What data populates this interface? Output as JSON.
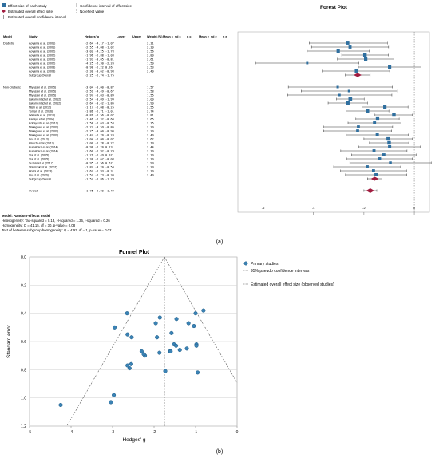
{
  "forest": {
    "title": "Forest Plot",
    "legend": {
      "study_effect": "Effect size of each study",
      "overall_effect": "Estimated overall effect size",
      "overall_ci": "Estimated overall confidence interval",
      "ci": "Confidence interval of effect size",
      "no_effect": "No-effect value"
    },
    "columns": [
      "Model",
      "Study",
      "Hedges' g",
      "Lower",
      "Upper",
      "Weight (%)",
      "Mean c",
      "sd c",
      "n c",
      "Mean e",
      "sd e",
      "n e"
    ],
    "groups": [
      {
        "name": "Diabetic",
        "studies": [
          {
            "label": "Aoyama et al. (2001)",
            "g": -2.64,
            "lo": -4.17,
            "hi": -1.07,
            "w": "2.31"
          },
          {
            "label": "Aoyama et al. (2001)",
            "g": -2.55,
            "lo": -4.08,
            "hi": -1.02,
            "w": "2.30"
          },
          {
            "label": "Aoyama et al. (2002)",
            "g": -3.02,
            "lo": -4.25,
            "hi": -1.78,
            "w": "2.56"
          },
          {
            "label": "Aoyama et al. (2002)",
            "g": -1.96,
            "lo": -2.88,
            "hi": -1.03,
            "w": "2.80"
          },
          {
            "label": "Aoyama et al. (2002)",
            "g": -1.93,
            "lo": -3.05,
            "hi": -0.81,
            "w": "2.61"
          },
          {
            "label": "Aoyama et al. (2002)",
            "g": -4.25,
            "lo": -6.3,
            "hi": -2.2,
            "w": "1.50"
          },
          {
            "label": "Aoyama et al. (2003)",
            "g": -0.98,
            "lo": -2.22,
            "hi": 0.26,
            "w": "2.53"
          },
          {
            "label": "Aoyama et al. (2003)",
            "g": -2.3,
            "lo": -3.62,
            "hi": -0.98,
            "w": "2.40"
          }
        ],
        "subgroup": {
          "label": "Subgroup Overall",
          "g": -2.25,
          "lo": -2.74,
          "hi": -1.75
        }
      },
      {
        "name": "Non-Diabetic",
        "studies": [
          {
            "label": "Miyazaki et al. (2005)",
            "g": -3.04,
            "lo": -5.0,
            "hi": -0.87,
            "w": "1.57"
          },
          {
            "label": "Miyazaki et al. (2005)",
            "g": -2.59,
            "lo": -4.49,
            "hi": -0.67,
            "w": "1.58"
          },
          {
            "label": "Miyazaki et al. (2005)",
            "g": -2.97,
            "lo": -5.03,
            "hi": -0.89,
            "w": "1.55"
          },
          {
            "label": "Lakamentijct et al. (2012)",
            "g": -2.54,
            "lo": -3.09,
            "hi": -1.99,
            "w": "3.00"
          },
          {
            "label": "Lakamentijct et al. (2012)",
            "g": -2.64,
            "lo": -3.42,
            "hi": -1.86,
            "w": "2.90"
          },
          {
            "label": "Nishi et al. (2012)",
            "g": -1.17,
            "lo": -2.08,
            "hi": -0.25,
            "w": "2.55"
          },
          {
            "label": "Tomar et al. (2016)",
            "g": -1.86,
            "lo": -2.71,
            "hi": -1.01,
            "w": "2.74"
          },
          {
            "label": "Wakada et al. (2010)",
            "g": -0.81,
            "lo": -1.56,
            "hi": -0.07,
            "w": "2.81"
          },
          {
            "label": "Kamiya et al. (2004)",
            "g": -1.46,
            "lo": -2.32,
            "hi": -0.6,
            "w": "2.65"
          },
          {
            "label": "Kobayashi et al. (2010)",
            "g": -1.58,
            "lo": -2.63,
            "hi": -0.53,
            "w": "2.35"
          },
          {
            "label": "Nakagawa et al. (2009)",
            "g": -2.22,
            "lo": -3.59,
            "hi": -0.86,
            "w": "2.20"
          },
          {
            "label": "Nakagawa et al. (2009)",
            "g": -2.25,
            "lo": -3.6,
            "hi": -0.9,
            "w": "2.20"
          },
          {
            "label": "Nakagawa et al. (2009)",
            "g": -1.47,
            "lo": -2.7,
            "hi": -0.24,
            "w": "2.40"
          },
          {
            "label": "Iyo et al. (2013)",
            "g": -1.04,
            "lo": -2.0,
            "hi": -0.07,
            "w": "2.62"
          },
          {
            "label": "Kikuchi et al. (2013)",
            "g": -1.0,
            "lo": -1.78,
            "hi": -0.22,
            "w": "2.79"
          },
          {
            "label": "Kumabara et al. (2014)",
            "g": -0.98,
            "lo": -2.2,
            "hi": 0.23,
            "w": "2.44"
          },
          {
            "label": "Kumabara et al. (2014)",
            "g": -1.6,
            "lo": -2.92,
            "hi": -0.29,
            "w": "2.30"
          },
          {
            "label": "Xia et al. (2015)",
            "g": -1.21,
            "lo": -2.49,
            "hi": 0.07,
            "w": "2.30"
          },
          {
            "label": "Xia et al. (2015)",
            "g": -1.38,
            "lo": -2.67,
            "hi": -0.08,
            "w": "2.30"
          },
          {
            "label": "Suzuki et al. (2017)",
            "g": -0.95,
            "lo": -2.56,
            "hi": 0.67,
            "w": "1.99"
          },
          {
            "label": "Shimizuki et al. (2007)",
            "g": -1.87,
            "lo": -3.2,
            "hi": -0.54,
            "w": "2.29"
          },
          {
            "label": "Hoshi et al. (2023)",
            "g": -1.62,
            "lo": -2.93,
            "hi": -0.31,
            "w": "2.30"
          },
          {
            "label": "Liu et al. (2020)",
            "g": -1.52,
            "lo": -2.73,
            "hi": -0.3,
            "w": "2.40"
          }
        ],
        "subgroup": {
          "label": "Subgroup Overall",
          "g": -1.57,
          "lo": -1.86,
          "hi": -1.29
        }
      }
    ],
    "overall": {
      "label": "Overall",
      "g": -1.75,
      "lo": -2.0,
      "hi": -1.49
    },
    "x_ticks": [
      -6,
      -4,
      -2,
      0
    ],
    "xlim": [
      -7,
      0.6
    ],
    "footnotes": [
      "Model: Random-effects model",
      "Heterogeneity: Tau-squared = 0.13, H-squared = 1.36, I-squared = 0.26",
      "Homogeneity: Q = 41.15, df = 30, p-value = 0.08",
      "Test of between-subgroup homogeneity: Q = 4.92, df = 1, p-value = 0.03"
    ],
    "panel_label": "(a)"
  },
  "chart_data": {
    "type": "scatter",
    "title": "Funnel Plot",
    "xlabel": "Hedges' g",
    "ylabel": "Standard error",
    "xlim": [
      -5,
      0
    ],
    "ylim": [
      1.2,
      0.0
    ],
    "x_ticks": [
      -5,
      -4,
      -3,
      -2,
      -1,
      0
    ],
    "y_ticks": [
      0.0,
      0.2,
      0.4,
      0.6,
      0.8,
      1.0,
      1.2
    ],
    "y_reversed": true,
    "grid": "horizontal",
    "legend_position": "right",
    "legend": {
      "primary": "Primary studies",
      "pseudo_ci": "95% pseudo confidence intervals",
      "overall": "Estimated overall effect size (observed studies)"
    },
    "overall_effect": -1.75,
    "points": [
      {
        "x": -4.25,
        "y": 1.05
      },
      {
        "x": -3.04,
        "y": 1.03
      },
      {
        "x": -2.97,
        "y": 0.98
      },
      {
        "x": -2.59,
        "y": 0.79
      },
      {
        "x": -2.64,
        "y": 0.77
      },
      {
        "x": -2.55,
        "y": 0.76
      },
      {
        "x": -2.3,
        "y": 0.67
      },
      {
        "x": -2.95,
        "y": 0.5
      },
      {
        "x": -2.65,
        "y": 0.4
      },
      {
        "x": -2.54,
        "y": 0.57
      },
      {
        "x": -2.64,
        "y": 0.55
      },
      {
        "x": -1.96,
        "y": 0.47
      },
      {
        "x": -1.93,
        "y": 0.57
      },
      {
        "x": -2.22,
        "y": 0.7
      },
      {
        "x": -2.25,
        "y": 0.69
      },
      {
        "x": -1.87,
        "y": 0.68
      },
      {
        "x": -1.86,
        "y": 0.43
      },
      {
        "x": -1.62,
        "y": 0.67
      },
      {
        "x": -1.6,
        "y": 0.67
      },
      {
        "x": -1.58,
        "y": 0.54
      },
      {
        "x": -1.52,
        "y": 0.62
      },
      {
        "x": -1.47,
        "y": 0.63
      },
      {
        "x": -1.46,
        "y": 0.44
      },
      {
        "x": -1.38,
        "y": 0.66
      },
      {
        "x": -1.21,
        "y": 0.65
      },
      {
        "x": -1.17,
        "y": 0.47
      },
      {
        "x": -1.04,
        "y": 0.49
      },
      {
        "x": -1.0,
        "y": 0.4
      },
      {
        "x": -0.98,
        "y": 0.62
      },
      {
        "x": -0.98,
        "y": 0.63
      },
      {
        "x": -0.95,
        "y": 0.82
      },
      {
        "x": -0.81,
        "y": 0.38
      },
      {
        "x": -1.73,
        "y": 0.81
      }
    ],
    "panel_label": "(b)"
  }
}
